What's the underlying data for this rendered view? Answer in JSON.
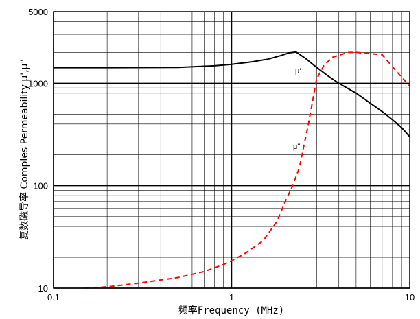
{
  "chart_data": {
    "type": "line",
    "xlabel": "频率Frequency (MHz)",
    "ylabel": "复数磁导率 Comples Permeability  μ',μ\"",
    "xscale": "log",
    "yscale": "log",
    "xlim": [
      0.1,
      10
    ],
    "ylim": [
      10,
      5000
    ],
    "x_ticks": [
      "0.1",
      "1",
      "10"
    ],
    "y_ticks": [
      "10",
      "100",
      "1000",
      "5000"
    ],
    "grid": true,
    "series": [
      {
        "name": "μ'",
        "style": "solid",
        "color": "#000000",
        "x": [
          0.1,
          0.2,
          0.5,
          0.8,
          1.0,
          1.3,
          1.6,
          1.9,
          2.1,
          2.3,
          2.6,
          3.0,
          3.5,
          4.0,
          5.0,
          6.0,
          7.0,
          8.0,
          9.0,
          10.0
        ],
        "y": [
          1420,
          1420,
          1430,
          1480,
          1530,
          1620,
          1720,
          1870,
          1980,
          2020,
          1750,
          1430,
          1170,
          1000,
          800,
          640,
          530,
          440,
          370,
          300
        ]
      },
      {
        "name": "μ\"",
        "style": "dashed",
        "color": "#ff0000",
        "x": [
          0.15,
          0.2,
          0.3,
          0.5,
          0.7,
          0.9,
          1.0,
          1.2,
          1.5,
          1.8,
          2.0,
          2.2,
          2.4,
          2.7,
          3.0,
          3.3,
          3.7,
          4.5,
          5.0,
          6.0,
          7.0,
          8.0,
          9.0,
          10.0
        ],
        "y": [
          10,
          10.3,
          11.2,
          12.7,
          14.5,
          17,
          18.5,
          22,
          29,
          45,
          70,
          100,
          150,
          400,
          1100,
          1500,
          1800,
          2000,
          2000,
          1950,
          1900,
          1450,
          1150,
          940
        ]
      }
    ],
    "annotations": [
      "μ'",
      "μ\""
    ]
  }
}
